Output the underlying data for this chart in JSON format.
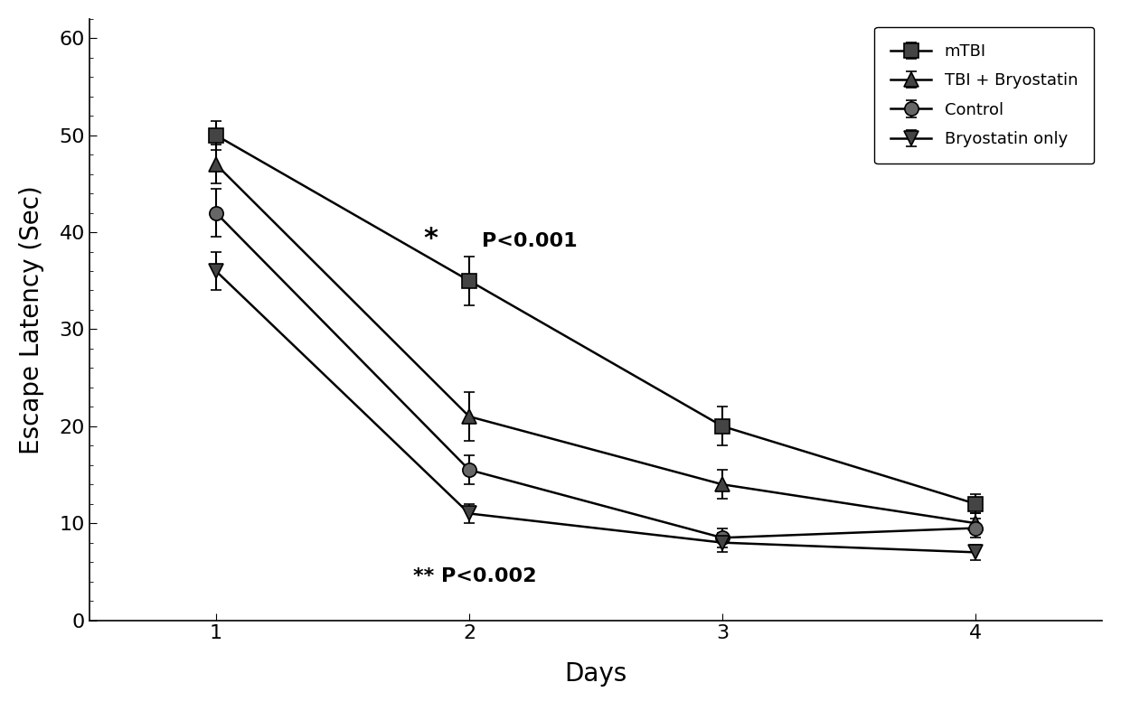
{
  "days": [
    1,
    2,
    3,
    4
  ],
  "series": {
    "mTBI": {
      "values": [
        50,
        35,
        20,
        12
      ],
      "yerr": [
        1.5,
        2.5,
        2.0,
        1.0
      ],
      "marker": "s",
      "label": "mTBI",
      "color": "#000000",
      "linestyle": "-"
    },
    "TBI_Bryostatin": {
      "values": [
        47,
        21,
        14,
        10
      ],
      "yerr": [
        2.0,
        2.5,
        1.5,
        1.0
      ],
      "marker": "^",
      "label": "TBI + Bryostatin",
      "color": "#000000",
      "linestyle": "-"
    },
    "Control": {
      "values": [
        42,
        15.5,
        8.5,
        9.5
      ],
      "yerr": [
        2.5,
        1.5,
        1.0,
        1.0
      ],
      "marker": "o",
      "label": "Control",
      "color": "#000000",
      "linestyle": "-"
    },
    "Bryostatin_only": {
      "values": [
        36,
        11,
        8,
        7
      ],
      "yerr": [
        2.0,
        1.0,
        1.0,
        0.8
      ],
      "marker": "v",
      "label": "Bryostatin only",
      "color": "#000000",
      "linestyle": "-"
    }
  },
  "xlabel": "Days",
  "ylabel": "Escape Latency (Sec)",
  "ylim": [
    0,
    62
  ],
  "yticks": [
    0,
    10,
    20,
    30,
    40,
    50,
    60
  ],
  "xlim": [
    0.5,
    4.5
  ],
  "xticks": [
    1,
    2,
    3,
    4
  ],
  "ann_star_text": "*",
  "ann_star_x": 1.82,
  "ann_star_y": 38.5,
  "ann_p001_text": "P<0.001",
  "ann_p001_x": 2.05,
  "ann_p001_y": 38.5,
  "ann_p002_text": "** P<0.002",
  "ann_p002_x": 1.78,
  "ann_p002_y": 4.0,
  "background_color": "#ffffff",
  "plot_bg_color": "#ffffff",
  "legend_fontsize": 13,
  "axis_label_fontsize": 20,
  "tick_fontsize": 16,
  "marker_size": 11,
  "linewidth": 1.8,
  "series_order": [
    "mTBI",
    "TBI_Bryostatin",
    "Control",
    "Bryostatin_only"
  ]
}
